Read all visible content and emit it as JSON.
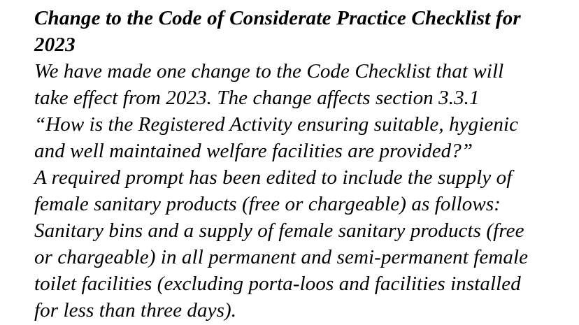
{
  "document": {
    "colors": {
      "background": "#ffffff",
      "text": "#000000"
    },
    "heading_lines": [
      "Change to the Code of Considerate Practice Checklist for",
      "2023"
    ],
    "paragraph_lines": [
      "We have made one change to the Code Checklist that will",
      "take effect from 2023. The change affects section 3.3.1",
      "“How is the Registered Activity ensuring suitable, hygienic",
      "and well maintained welfare facilities are provided?”",
      "A required prompt has been edited to include the supply of",
      "female sanitary products (free or chargeable) as follows:",
      "Sanitary bins and a supply of female sanitary products (free",
      "or chargeable) in all permanent and semi-permanent female",
      "toilet facilities (excluding porta-loos and facilities installed",
      "for less than three days)."
    ]
  }
}
